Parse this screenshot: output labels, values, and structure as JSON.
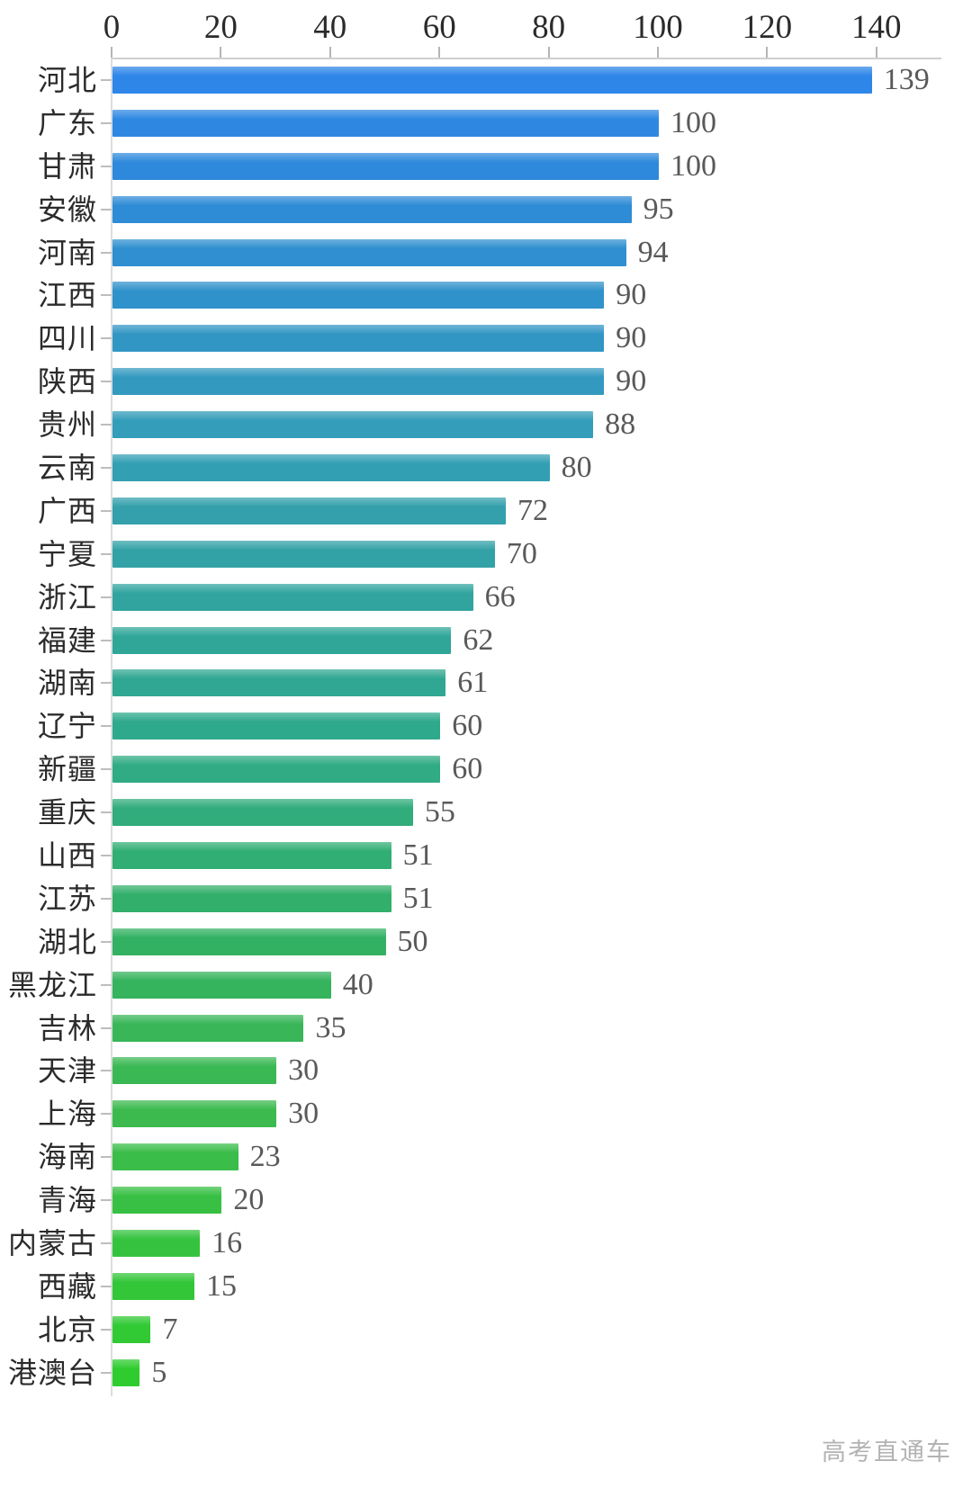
{
  "chart_data": {
    "type": "bar",
    "orientation": "horizontal",
    "title": "",
    "xlabel": "",
    "ylabel": "",
    "categories": [
      "河北",
      "广东",
      "甘肃",
      "安徽",
      "河南",
      "江西",
      "四川",
      "陕西",
      "贵州",
      "云南",
      "广西",
      "宁夏",
      "浙江",
      "福建",
      "湖南",
      "辽宁",
      "新疆",
      "重庆",
      "山西",
      "江苏",
      "湖北",
      "黑龙江",
      "吉林",
      "天津",
      "上海",
      "海南",
      "青海",
      "内蒙古",
      "西藏",
      "北京",
      "港澳台"
    ],
    "values": [
      139,
      100,
      100,
      95,
      94,
      90,
      90,
      90,
      88,
      80,
      72,
      70,
      66,
      62,
      61,
      60,
      60,
      55,
      51,
      51,
      50,
      40,
      35,
      30,
      30,
      23,
      20,
      16,
      15,
      7,
      5
    ],
    "bar_colors": [
      "#2E86E8",
      "#2E88E2",
      "#2E89DC",
      "#2E8BD6",
      "#2F8FD0",
      "#3092CA",
      "#3296C5",
      "#3399BF",
      "#349DB9",
      "#339FB3",
      "#33A0AC",
      "#32A2A6",
      "#31A49F",
      "#30A699",
      "#30A792",
      "#2FA98C",
      "#30AB84",
      "#31AC7B",
      "#31AE73",
      "#32AF6A",
      "#33B162",
      "#35B35D",
      "#38B658",
      "#3AB853",
      "#3CBA4E",
      "#3ABD49",
      "#38C044",
      "#35C33F",
      "#33C639",
      "#31C934",
      "#2FCC2F"
    ],
    "x_axis": {
      "position": "top",
      "ticks": [
        0,
        20,
        40,
        60,
        80,
        100,
        120,
        140
      ],
      "min": 0,
      "max": 148,
      "grid": false
    },
    "value_labels_shown": true,
    "legend": null
  },
  "colors": {
    "background": "#ffffff",
    "axis_line": "#cfcfcf",
    "tick_text": "#2b2b2b",
    "category_text": "#2b2b2b",
    "value_text": "#595959",
    "gradient_start": "#2E86E8",
    "gradient_end": "#2FCC2F"
  },
  "watermark": {
    "text": "高考直通车",
    "color": "#b3b3b3"
  }
}
